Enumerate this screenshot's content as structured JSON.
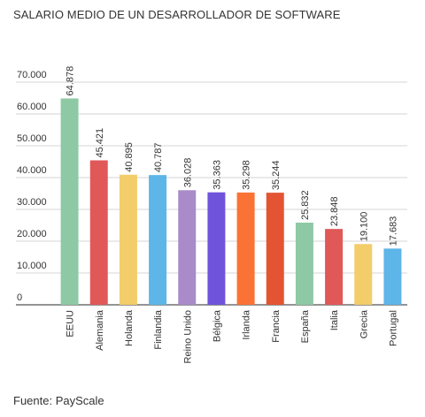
{
  "title": "SALARIO MEDIO DE UN DESARROLLADOR DE SOFTWARE",
  "source": "Fuente: PayScale",
  "chart_data": {
    "type": "bar",
    "title": "SALARIO MEDIO DE UN DESARROLLADOR DE SOFTWARE",
    "xlabel": "",
    "ylabel": "",
    "ylim": [
      0,
      70000
    ],
    "grid": true,
    "legend": "none",
    "y_ticks": [
      {
        "value": 0,
        "label": "0"
      },
      {
        "value": 10000,
        "label": "10.000"
      },
      {
        "value": 20000,
        "label": "20.000"
      },
      {
        "value": 30000,
        "label": "30.000"
      },
      {
        "value": 40000,
        "label": "40.000"
      },
      {
        "value": 50000,
        "label": "50.000"
      },
      {
        "value": 60000,
        "label": "60.000"
      },
      {
        "value": 70000,
        "label": "70.000"
      }
    ],
    "categories": [
      "EEUU",
      "Alemania",
      "Holanda",
      "Finlandia",
      "Reino Unido",
      "Bélgica",
      "Irlanda",
      "Francia",
      "España",
      "Italia",
      "Grecia",
      "Portugal"
    ],
    "values": [
      64878,
      45421,
      40895,
      40787,
      36028,
      35363,
      35298,
      35244,
      25832,
      23848,
      19100,
      17683
    ],
    "value_labels": [
      "64.878",
      "45.421",
      "40.895",
      "40.787",
      "36.028",
      "35.363",
      "35.298",
      "35.244",
      "25.832",
      "23.848",
      "19.100",
      "17.683"
    ],
    "colors": [
      "#8ec9a5",
      "#e15859",
      "#f2cd6a",
      "#5db5e8",
      "#a98bc9",
      "#6f54db",
      "#fb7235",
      "#e45432",
      "#8ec9a5",
      "#e15859",
      "#f2cd6a",
      "#5db5e8"
    ]
  }
}
